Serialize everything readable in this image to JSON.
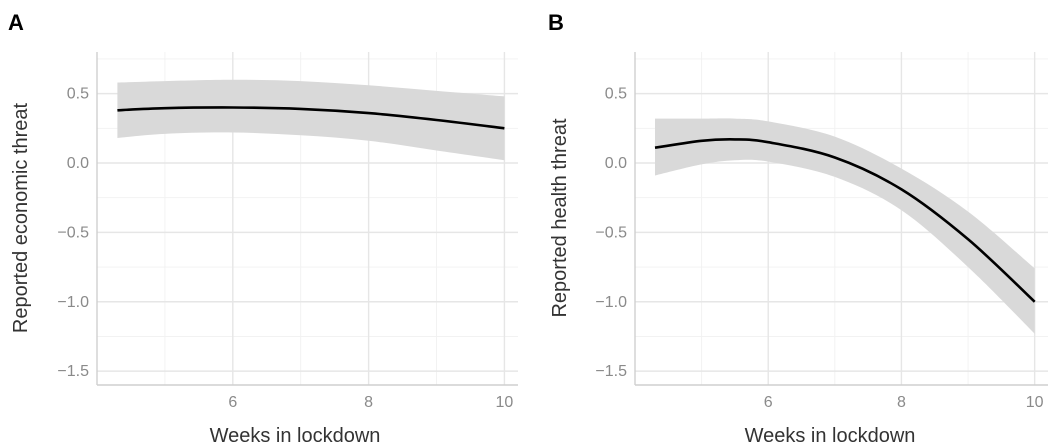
{
  "chart_data": [
    {
      "panel": "A",
      "type": "line",
      "xlabel": "Weeks in lockdown",
      "ylabel": "Reported economic threat",
      "xlim": [
        4.0,
        10.2
      ],
      "ylim": [
        -1.6,
        0.8
      ],
      "x_ticks": [
        6,
        8,
        10
      ],
      "x_tick_labels": [
        "6",
        "8",
        "10"
      ],
      "y_ticks": [
        -1.5,
        -1.0,
        -0.5,
        0.0,
        0.5
      ],
      "y_tick_labels": [
        "−1.5",
        "−1.0",
        "−0.5",
        "0.0",
        "0.5"
      ],
      "grid": true,
      "series": [
        {
          "x": [
            4.3,
            5.0,
            6.0,
            7.0,
            8.0,
            9.0,
            10.0
          ],
          "y": [
            0.38,
            0.395,
            0.4,
            0.39,
            0.36,
            0.31,
            0.25
          ],
          "lower": [
            0.18,
            0.21,
            0.22,
            0.2,
            0.16,
            0.09,
            0.02
          ],
          "upper": [
            0.58,
            0.59,
            0.6,
            0.59,
            0.56,
            0.52,
            0.48
          ]
        }
      ],
      "ribbon_color": "#d9d9d9",
      "line_color": "#000000"
    },
    {
      "panel": "B",
      "type": "line",
      "xlabel": "Weeks in lockdown",
      "ylabel": "Reported health threat",
      "xlim": [
        4.0,
        10.2
      ],
      "ylim": [
        -1.6,
        0.8
      ],
      "x_ticks": [
        6,
        8,
        10
      ],
      "x_tick_labels": [
        "6",
        "8",
        "10"
      ],
      "y_ticks": [
        -1.5,
        -1.0,
        -0.5,
        0.0,
        0.5
      ],
      "y_tick_labels": [
        "−1.5",
        "−1.0",
        "−0.5",
        "0.0",
        "0.5"
      ],
      "grid": true,
      "series": [
        {
          "x": [
            4.3,
            5.0,
            5.5,
            6.0,
            7.0,
            8.0,
            9.0,
            10.0
          ],
          "y": [
            0.11,
            0.16,
            0.17,
            0.15,
            0.04,
            -0.19,
            -0.55,
            -1.0
          ],
          "lower": [
            -0.09,
            -0.01,
            0.02,
            0.01,
            -0.1,
            -0.34,
            -0.75,
            -1.23
          ],
          "upper": [
            0.32,
            0.32,
            0.32,
            0.3,
            0.19,
            -0.04,
            -0.35,
            -0.76
          ]
        }
      ],
      "ribbon_color": "#d9d9d9",
      "line_color": "#000000"
    }
  ]
}
